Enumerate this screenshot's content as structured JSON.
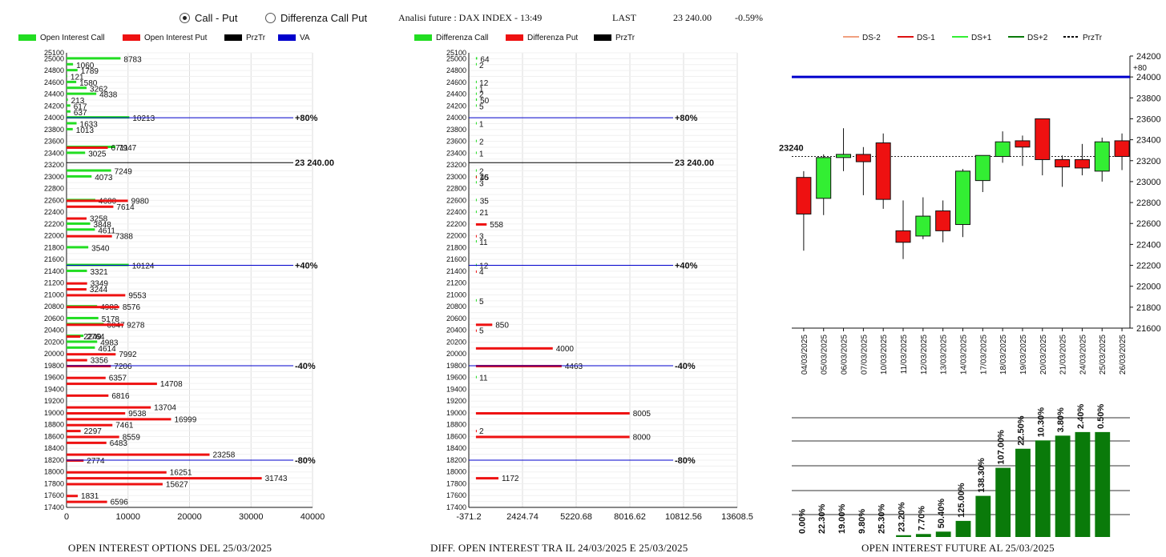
{
  "header": {
    "radio_call_put": "Call - Put",
    "radio_diff_call_put": "Differenza Call Put",
    "analysis_label": "Analisi future : DAX INDEX - 13:49",
    "last_label": "LAST",
    "last_value": "23 240.00",
    "last_change": "-0.59%"
  },
  "captions": {
    "left": "OPEN INTEREST OPTIONS DEL 25/03/2025",
    "middle": "DIFF. OPEN INTEREST TRA IL 24/03/2025 E 25/03/2025",
    "right": "OPEN INTEREST FUTURE AL 25/03/2025"
  },
  "colors": {
    "green": "#22dd22",
    "red": "#ee1111",
    "black": "#000000",
    "blue": "#0000cc",
    "dark_green": "#0a7a0a"
  },
  "chart_data": [
    {
      "type": "bar",
      "title": "OPEN INTEREST OPTIONS DEL 25/03/2025",
      "orientation": "horizontal",
      "legend": [
        "Open Interest Call",
        "Open Interest Put",
        "PrzTr",
        "VA"
      ],
      "xlim": [
        0,
        40000
      ],
      "x_ticks": [
        "0",
        "10000",
        "20000",
        "30000",
        "40000"
      ],
      "strike_range": [
        17400,
        25100
      ],
      "series": [
        {
          "name": "Open Interest Call",
          "color": "#22dd22",
          "points": [
            [
              25000,
              8783
            ],
            [
              24900,
              1060
            ],
            [
              24800,
              1789
            ],
            [
              24700,
              121
            ],
            [
              24600,
              1580
            ],
            [
              24500,
              3262
            ],
            [
              24400,
              4838
            ],
            [
              24300,
              213
            ],
            [
              24200,
              617
            ],
            [
              24100,
              637
            ],
            [
              24000,
              10213
            ],
            [
              23900,
              1633
            ],
            [
              23800,
              1013
            ],
            [
              23500,
              7947
            ],
            [
              23400,
              3025
            ],
            [
              23100,
              7249
            ],
            [
              23000,
              4073
            ],
            [
              22600,
              4680
            ],
            [
              22200,
              3848
            ],
            [
              22100,
              4611
            ],
            [
              21800,
              3540
            ],
            [
              21500,
              10124
            ],
            [
              21400,
              3321
            ],
            [
              20800,
              4982
            ],
            [
              20600,
              5178
            ],
            [
              20500,
              6047
            ],
            [
              20300,
              2764
            ],
            [
              20200,
              4983
            ],
            [
              20100,
              4614
            ]
          ]
        },
        {
          "name": "Open Interest Put",
          "color": "#ee1111",
          "points": [
            [
              23500,
              6711
            ],
            [
              22600,
              9980
            ],
            [
              22500,
              7614
            ],
            [
              22300,
              3258
            ],
            [
              22000,
              7388
            ],
            [
              21200,
              3349
            ],
            [
              21100,
              3244
            ],
            [
              21000,
              9553
            ],
            [
              20800,
              8576
            ],
            [
              20500,
              9278
            ],
            [
              20300,
              2249
            ],
            [
              20000,
              7992
            ],
            [
              19900,
              3356
            ],
            [
              19800,
              7206
            ],
            [
              19600,
              6357
            ],
            [
              19500,
              14708
            ],
            [
              19300,
              6816
            ],
            [
              19100,
              13704
            ],
            [
              19000,
              9538
            ],
            [
              18900,
              16999
            ],
            [
              18800,
              7461
            ],
            [
              18700,
              2297
            ],
            [
              18600,
              8559
            ],
            [
              18500,
              6483
            ],
            [
              18300,
              23258
            ],
            [
              18200,
              2774
            ],
            [
              18000,
              16251
            ],
            [
              17900,
              31743
            ],
            [
              17800,
              15627
            ],
            [
              17600,
              1831
            ],
            [
              17500,
              6596
            ]
          ]
        }
      ],
      "reference_lines": [
        {
          "label": "+80%",
          "strike": 24000,
          "color": "#0000cc"
        },
        {
          "label": "23 240.00",
          "strike": 23240,
          "color": "#000000"
        },
        {
          "label": "+40%",
          "strike": 21500,
          "color": "#0000cc"
        },
        {
          "label": "-40%",
          "strike": 19800,
          "color": "#0000cc"
        },
        {
          "label": "-80%",
          "strike": 18200,
          "color": "#0000cc"
        }
      ]
    },
    {
      "type": "bar",
      "title": "DIFF. OPEN INTEREST TRA IL 24/03/2025 E 25/03/2025",
      "orientation": "horizontal",
      "legend": [
        "Differenza Call",
        "Differenza Put",
        "PrzTr"
      ],
      "xlim": [
        -371.2,
        13608.5
      ],
      "x_ticks": [
        "-371.2",
        "2424.74",
        "5220.68",
        "8016.62",
        "10812.56",
        "13608.5"
      ],
      "strike_range": [
        17400,
        25100
      ],
      "series": [
        {
          "name": "Differenza Call",
          "color": "#22dd22",
          "points": [
            [
              25000,
              64
            ],
            [
              24900,
              2
            ],
            [
              24600,
              12
            ],
            [
              24500,
              1
            ],
            [
              24400,
              2
            ],
            [
              24300,
              50
            ],
            [
              24200,
              5
            ],
            [
              23900,
              1
            ],
            [
              23600,
              2
            ],
            [
              23400,
              1
            ],
            [
              23100,
              2
            ],
            [
              23000,
              16
            ],
            [
              22900,
              3
            ],
            [
              22600,
              35
            ],
            [
              22400,
              21
            ],
            [
              21900,
              11
            ],
            [
              21500,
              12
            ],
            [
              20900,
              5
            ],
            [
              19600,
              11
            ]
          ]
        },
        {
          "name": "Differenza Put",
          "color": "#ee1111",
          "points": [
            [
              23000,
              45
            ],
            [
              22200,
              558
            ],
            [
              22000,
              3
            ],
            [
              21400,
              4
            ],
            [
              20500,
              850
            ],
            [
              20400,
              5
            ],
            [
              20100,
              4000
            ],
            [
              19800,
              4463
            ],
            [
              19000,
              8005
            ],
            [
              18700,
              2
            ],
            [
              18600,
              8000
            ],
            [
              17900,
              1172
            ]
          ]
        }
      ],
      "reference_lines": [
        {
          "label": "+80%",
          "strike": 24000,
          "color": "#0000cc"
        },
        {
          "label": "23 240.00",
          "strike": 23240,
          "color": "#000000"
        },
        {
          "label": "+40%",
          "strike": 21500,
          "color": "#0000cc"
        },
        {
          "label": "-40%",
          "strike": 19800,
          "color": "#0000cc"
        },
        {
          "label": "-80%",
          "strike": 18200,
          "color": "#0000cc"
        }
      ]
    },
    {
      "type": "candlestick",
      "legend": [
        "DS-2",
        "DS-1",
        "DS+1",
        "DS+2",
        "PrzTr"
      ],
      "legend_colors": [
        "#f0a080",
        "#dd1111",
        "#33ee33",
        "#0a7a0a",
        "#000000"
      ],
      "ylim": [
        21600,
        24200
      ],
      "y_ticks": [
        "24200",
        "24000",
        "23800",
        "23600",
        "23400",
        "23200",
        "23000",
        "22800",
        "22600",
        "22400",
        "22200",
        "22000",
        "21800",
        "21600"
      ],
      "price_label": "23240",
      "price_line": 23240,
      "blue_line": {
        "value": 24000,
        "label": "+80"
      },
      "dates": [
        "04/03/2025",
        "05/03/2025",
        "06/03/2025",
        "07/03/2025",
        "10/03/2025",
        "11/03/2025",
        "12/03/2025",
        "13/03/2025",
        "14/03/2025",
        "17/03/2025",
        "18/03/2025",
        "19/03/2025",
        "20/03/2025",
        "21/03/2025",
        "24/03/2025",
        "25/03/2025",
        "26/03/2025"
      ],
      "candles": [
        {
          "open": 23040,
          "high": 23100,
          "low": 22340,
          "close": 22690
        },
        {
          "open": 22840,
          "high": 23260,
          "low": 22680,
          "close": 23230
        },
        {
          "open": 23230,
          "high": 23510,
          "low": 23100,
          "close": 23260
        },
        {
          "open": 23260,
          "high": 23330,
          "low": 22870,
          "close": 23190
        },
        {
          "open": 23370,
          "high": 23460,
          "low": 22740,
          "close": 22830
        },
        {
          "open": 22530,
          "high": 22820,
          "low": 22260,
          "close": 22420
        },
        {
          "open": 22480,
          "high": 22850,
          "low": 22450,
          "close": 22670
        },
        {
          "open": 22720,
          "high": 22820,
          "low": 22420,
          "close": 22530
        },
        {
          "open": 22590,
          "high": 23120,
          "low": 22470,
          "close": 23100
        },
        {
          "open": 23010,
          "high": 23250,
          "low": 22900,
          "close": 23250
        },
        {
          "open": 23240,
          "high": 23480,
          "low": 23180,
          "close": 23380
        },
        {
          "open": 23390,
          "high": 23440,
          "low": 23150,
          "close": 23330
        },
        {
          "open": 23600,
          "high": 23600,
          "low": 23060,
          "close": 23210
        },
        {
          "open": 23210,
          "high": 23250,
          "low": 22950,
          "close": 23140
        },
        {
          "open": 23210,
          "high": 23360,
          "low": 23060,
          "close": 23130
        },
        {
          "open": 23100,
          "high": 23420,
          "low": 23000,
          "close": 23380
        },
        {
          "open": 23390,
          "high": 23460,
          "low": 23110,
          "close": 23240
        }
      ]
    },
    {
      "type": "bar",
      "title": "OPEN INTEREST FUTURE AL 25/03/2025",
      "categories": [
        "04/03/2025",
        "05/03/2025",
        "06/03/2025",
        "07/03/2025",
        "10/03/2025",
        "11/03/2025",
        "12/03/2025",
        "13/03/2025",
        "14/03/2025",
        "17/03/2025",
        "18/03/2025",
        "19/03/2025",
        "20/03/2025",
        "21/03/2025",
        "24/03/2025",
        "25/03/2025",
        "26/03/2025"
      ],
      "values": [
        0,
        0,
        0,
        0,
        0,
        1.5,
        2.5,
        4.5,
        13.5,
        34.5,
        58,
        74,
        81,
        85,
        88,
        88,
        0
      ],
      "labels": [
        "0.00%",
        "22.30%",
        "19.00%",
        "9.80%",
        "25.30%",
        "23.20%",
        "7.70%",
        "50.40%",
        "125.00%",
        "138.30%",
        "107.00%",
        "22.50%",
        "10.30%",
        "3.80%",
        "2.40%",
        "0.50%",
        ""
      ],
      "ylim": [
        0,
        100
      ],
      "color": "#0a7a0a"
    }
  ]
}
